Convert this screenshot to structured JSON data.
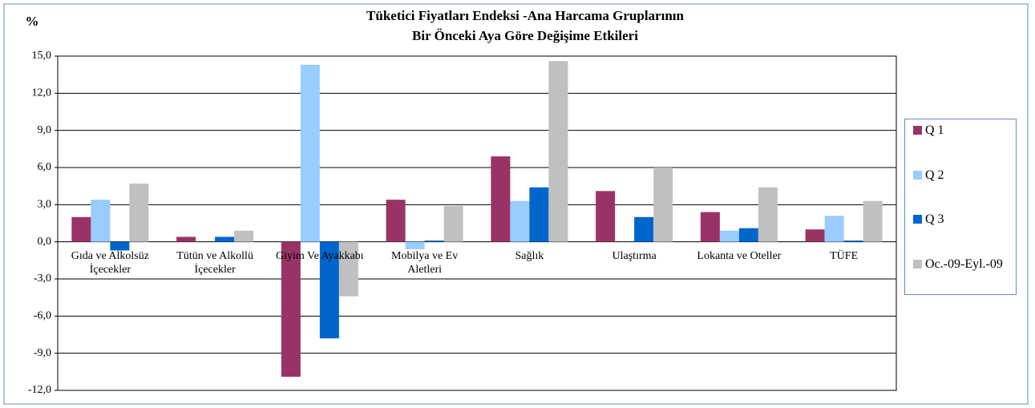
{
  "chart_data": {
    "type": "bar",
    "title_lines": [
      "Tüketici Fiyatları Endeksi -Ana Harcama Gruplarının",
      "Bir Önceki Aya Göre Değişime Etkileri"
    ],
    "y_label": "%",
    "categories": [
      "Gıda ve Alkolsüz İçecekler",
      "Tütün ve Alkollü İçecekler",
      "Giyim Ve Ayakkabı",
      "Mobilya ve Ev Aletleri",
      "Sağlık",
      "Ulaştırma",
      "Lokanta ve Oteller",
      "TÜFE"
    ],
    "series": [
      {
        "name": "Q 1",
        "color": "#993366",
        "values": [
          2.0,
          0.4,
          -10.9,
          3.4,
          6.9,
          4.1,
          2.4,
          1.0
        ]
      },
      {
        "name": "Q 2",
        "color": "#99ccff",
        "values": [
          3.4,
          0.0,
          14.3,
          -0.6,
          3.3,
          0.0,
          0.9,
          2.1
        ]
      },
      {
        "name": "Q 3",
        "color": "#0066cc",
        "values": [
          -0.7,
          0.4,
          -7.8,
          0.1,
          4.4,
          2.0,
          1.1,
          0.1
        ]
      },
      {
        "name": "Oc.-09-Eyl.-09",
        "color": "#c0c0c0",
        "values": [
          4.7,
          0.9,
          -4.4,
          2.9,
          14.6,
          6.0,
          4.4,
          3.3
        ]
      }
    ],
    "ylim": [
      -12,
      15
    ],
    "yticks": [
      {
        "value": 15,
        "label": "15,0"
      },
      {
        "value": 12,
        "label": "12,0"
      },
      {
        "value": 9,
        "label": "9,0"
      },
      {
        "value": 6,
        "label": "6,0"
      },
      {
        "value": 3,
        "label": "3,0"
      },
      {
        "value": 0,
        "label": "0,0"
      },
      {
        "value": -3,
        "label": "-3,0"
      },
      {
        "value": -6,
        "label": "-6,0"
      },
      {
        "value": -9,
        "label": "-9,0"
      },
      {
        "value": -12,
        "label": "-12,0"
      }
    ],
    "grid": true,
    "legend": "right"
  }
}
